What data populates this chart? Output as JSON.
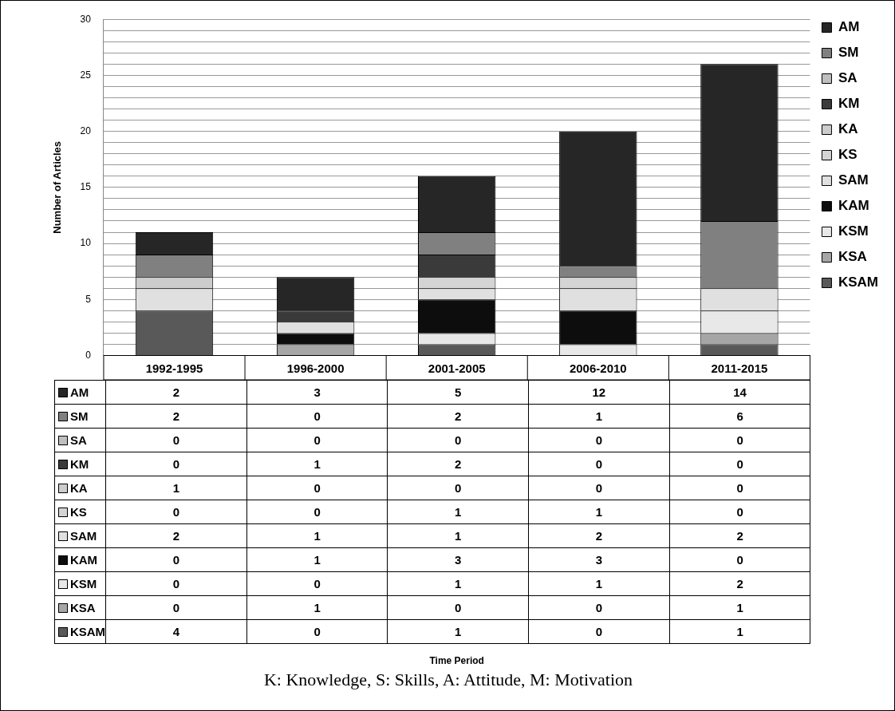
{
  "chart_data": {
    "type": "bar",
    "stacked": true,
    "ylabel": "Number of Articles",
    "categories": [
      "1992-1995",
      "1996-2000",
      "2001-2005",
      "2006-2010",
      "2011-2015"
    ],
    "series": [
      {
        "name": "KSAM",
        "color": "#595959",
        "values": [
          4,
          0,
          1,
          0,
          1
        ]
      },
      {
        "name": "KSA",
        "color": "#a6a6a6",
        "values": [
          0,
          1,
          0,
          0,
          1
        ]
      },
      {
        "name": "KSM",
        "color": "#e8e8e8",
        "values": [
          0,
          0,
          1,
          1,
          2
        ]
      },
      {
        "name": "KAM",
        "color": "#0d0d0d",
        "values": [
          0,
          1,
          3,
          3,
          0
        ]
      },
      {
        "name": "SAM",
        "color": "#e0e0e0",
        "values": [
          2,
          1,
          1,
          2,
          2
        ]
      },
      {
        "name": "KS",
        "color": "#d4d4d4",
        "values": [
          0,
          0,
          1,
          1,
          0
        ]
      },
      {
        "name": "KA",
        "color": "#cccccc",
        "values": [
          1,
          0,
          0,
          0,
          0
        ]
      },
      {
        "name": "KM",
        "color": "#3a3a3a",
        "values": [
          0,
          1,
          2,
          0,
          0
        ]
      },
      {
        "name": "SA",
        "color": "#bfbfbf",
        "values": [
          0,
          0,
          0,
          0,
          0
        ]
      },
      {
        "name": "SM",
        "color": "#808080",
        "values": [
          2,
          0,
          2,
          1,
          6
        ]
      },
      {
        "name": "AM",
        "color": "#262626",
        "values": [
          2,
          3,
          5,
          12,
          14
        ]
      }
    ],
    "ylim": [
      0,
      30
    ],
    "yticks": [
      0,
      {
        "value": 1,
        "label": null
      },
      {
        "value": 2,
        "label": null
      },
      {
        "value": 3,
        "label": null
      },
      {
        "value": 4,
        "label": null
      },
      5,
      {
        "value": 6,
        "label": null
      },
      {
        "value": 7,
        "label": null
      },
      {
        "value": 8,
        "label": null
      },
      {
        "value": 9,
        "label": null
      },
      10,
      {
        "value": 11,
        "label": null
      },
      {
        "value": 12,
        "label": null
      },
      {
        "value": 13,
        "label": null
      },
      {
        "value": 14,
        "label": null
      },
      15,
      {
        "value": 16,
        "label": null
      },
      {
        "value": 17,
        "label": null
      },
      {
        "value": 18,
        "label": null
      },
      {
        "value": 19,
        "label": null
      },
      20,
      {
        "value": 21,
        "label": null
      },
      {
        "value": 22,
        "label": null
      },
      {
        "value": 23,
        "label": null
      },
      {
        "value": 24,
        "label": null
      },
      25,
      {
        "value": 26,
        "label": null
      },
      {
        "value": 27,
        "label": null
      },
      {
        "value": 28,
        "label": null
      },
      {
        "value": 29,
        "label": null
      },
      30
    ],
    "grid": "y",
    "legend": "right",
    "data_labels": true,
    "annotations": [
      "Time Period",
      "K: Knowledge, S: Skills, A: Attitude, M: Motivation"
    ]
  }
}
